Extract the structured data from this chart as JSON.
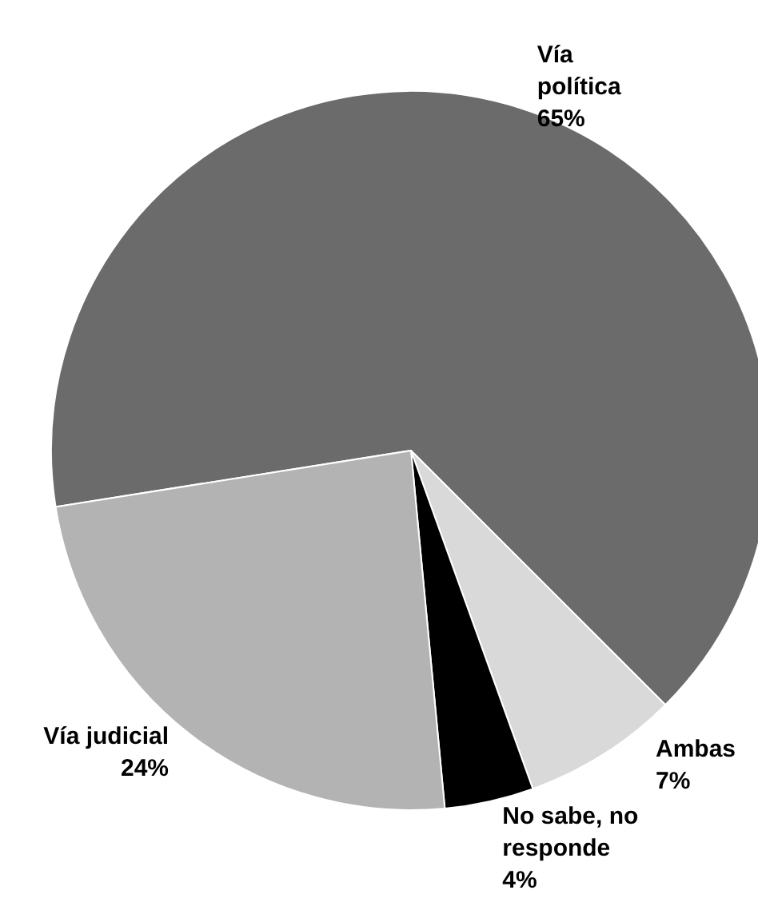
{
  "chart_data": {
    "type": "pie",
    "categories": [
      "Vía política",
      "Ambas",
      "No sabe, no responde",
      "Vía judicial"
    ],
    "values": [
      65,
      7,
      4,
      24
    ],
    "value_labels": [
      "65%",
      "7%",
      "4%",
      "24%"
    ],
    "colors": [
      "#6b6b6b",
      "#d9d9d9",
      "#000000",
      "#b3b3b3"
    ],
    "legend": false
  }
}
